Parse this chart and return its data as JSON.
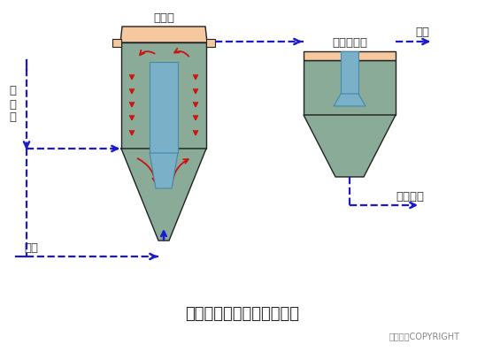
{
  "title": "三相生物流化床的工艺流程",
  "copyright": "东方仿真COPYRIGHT",
  "label_liuhuachuang": "流化床",
  "label_ercichendi": "二次沉淀池",
  "label_chushui": "出水",
  "label_yuanwushui": "原\n污\n水",
  "label_kongqi": "空气",
  "label_wunipaifang": "污泥排放",
  "bg_color": "#ffffff",
  "reactor_color": "#8aab98",
  "reactor_top_color": "#f5c8a0",
  "reactor_inner_color": "#7ab0c8",
  "settler_color": "#8aab98",
  "settler_top_color": "#f5c8a0",
  "settler_inner_color": "#7ab0c8",
  "arrow_blue": "#1a1acc",
  "arrow_red": "#cc1111",
  "line_color": "#222222"
}
